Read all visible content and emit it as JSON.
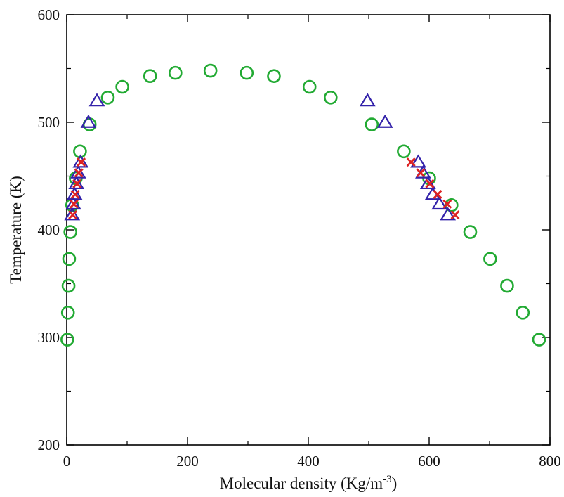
{
  "chart_data": {
    "type": "scatter",
    "xlabel": "Molecular density (Kg/m",
    "xlabel_superscript": "-3",
    "xlabel_suffix": ")",
    "ylabel": "Temperature (K)",
    "xlim": [
      0,
      800
    ],
    "ylim": [
      200,
      600
    ],
    "x_ticks": [
      0,
      200,
      400,
      600,
      800
    ],
    "y_ticks": [
      200,
      300,
      400,
      500,
      600
    ],
    "x_tick_labels": [
      "0",
      "200",
      "400",
      "600",
      "800"
    ],
    "y_tick_labels": [
      "200",
      "300",
      "400",
      "500",
      "600"
    ],
    "grid": false,
    "legend": "none",
    "series": [
      {
        "marker": "circle",
        "color": "#22aa33",
        "points": [
          [
            1,
            298
          ],
          [
            2,
            323
          ],
          [
            3,
            348
          ],
          [
            4,
            373
          ],
          [
            6,
            398
          ],
          [
            9,
            423
          ],
          [
            15,
            448
          ],
          [
            22,
            473
          ],
          [
            38,
            498
          ],
          [
            68,
            523
          ],
          [
            92,
            533
          ],
          [
            138,
            543
          ],
          [
            180,
            546
          ],
          [
            238,
            548
          ],
          [
            298,
            546
          ],
          [
            343,
            543
          ],
          [
            402,
            533
          ],
          [
            437,
            523
          ],
          [
            505,
            498
          ],
          [
            558,
            473
          ],
          [
            600,
            448
          ],
          [
            637,
            423
          ],
          [
            668,
            398
          ],
          [
            701,
            373
          ],
          [
            729,
            348
          ],
          [
            755,
            323
          ],
          [
            782,
            298
          ]
        ]
      },
      {
        "marker": "triangle",
        "color": "#3322aa",
        "points": [
          [
            50,
            520
          ],
          [
            36,
            500
          ],
          [
            23,
            463
          ],
          [
            19,
            453
          ],
          [
            16,
            443
          ],
          [
            13,
            433
          ],
          [
            11,
            424
          ],
          [
            9,
            414
          ],
          [
            498,
            520
          ],
          [
            527,
            500
          ],
          [
            582,
            463
          ],
          [
            590,
            453
          ],
          [
            598,
            443
          ],
          [
            606,
            433
          ],
          [
            617,
            424
          ],
          [
            631,
            414
          ]
        ]
      },
      {
        "marker": "cross",
        "color": "#dd2222",
        "points": [
          [
            24,
            463
          ],
          [
            20,
            453
          ],
          [
            17,
            443
          ],
          [
            14,
            433
          ],
          [
            12,
            424
          ],
          [
            10,
            414
          ],
          [
            570,
            463
          ],
          [
            586,
            453
          ],
          [
            601,
            443
          ],
          [
            614,
            433
          ],
          [
            630,
            424
          ],
          [
            643,
            414
          ]
        ]
      }
    ]
  }
}
